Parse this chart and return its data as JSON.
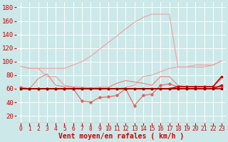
{
  "x": [
    0,
    1,
    2,
    3,
    4,
    5,
    6,
    7,
    8,
    9,
    10,
    11,
    12,
    13,
    14,
    15,
    16,
    17,
    18,
    19,
    20,
    21,
    22,
    23
  ],
  "series": [
    {
      "name": "line1_lightest",
      "color": "#f0a0a0",
      "linewidth": 0.8,
      "marker": null,
      "y": [
        93,
        90,
        90,
        90,
        90,
        90,
        95,
        100,
        108,
        118,
        128,
        138,
        148,
        158,
        165,
        170,
        170,
        170,
        92,
        92,
        95,
        95,
        95,
        101
      ]
    },
    {
      "name": "line2_light",
      "color": "#f0a0a0",
      "linewidth": 0.8,
      "marker": null,
      "y": [
        93,
        90,
        90,
        78,
        78,
        65,
        63,
        62,
        61,
        60,
        60,
        60,
        62,
        65,
        78,
        80,
        85,
        90,
        92,
        92,
        92,
        92,
        95,
        101
      ]
    },
    {
      "name": "line3_medium_light",
      "color": "#e88080",
      "linewidth": 0.8,
      "marker": null,
      "y": [
        62,
        60,
        75,
        82,
        65,
        63,
        62,
        62,
        61,
        62,
        62,
        68,
        72,
        70,
        68,
        65,
        78,
        78,
        65,
        63,
        62,
        63,
        63,
        75
      ]
    },
    {
      "name": "line4_medium",
      "color": "#e06060",
      "linewidth": 0.8,
      "marker": "D",
      "markersize": 1.8,
      "y": [
        62,
        60,
        60,
        60,
        60,
        60,
        60,
        42,
        40,
        47,
        48,
        50,
        60,
        35,
        50,
        52,
        65,
        67,
        63,
        63,
        63,
        63,
        63,
        63
      ]
    },
    {
      "name": "line5_dark_flat",
      "color": "#cc0000",
      "linewidth": 1.2,
      "marker": "s",
      "markersize": 2.0,
      "y": [
        60,
        60,
        60,
        60,
        60,
        60,
        60,
        60,
        60,
        60,
        60,
        60,
        60,
        60,
        60,
        60,
        60,
        60,
        63,
        63,
        63,
        63,
        63,
        78
      ]
    },
    {
      "name": "line6_dark_flat2",
      "color": "#cc0000",
      "linewidth": 1.2,
      "marker": "s",
      "markersize": 2.0,
      "y": [
        60,
        60,
        60,
        60,
        60,
        60,
        60,
        60,
        60,
        60,
        60,
        60,
        60,
        60,
        60,
        60,
        60,
        60,
        60,
        60,
        60,
        60,
        60,
        65
      ]
    },
    {
      "name": "line7_darkest",
      "color": "#990000",
      "linewidth": 1.2,
      "marker": "s",
      "markersize": 2.0,
      "y": [
        60,
        60,
        60,
        60,
        60,
        60,
        60,
        60,
        60,
        60,
        60,
        60,
        60,
        60,
        60,
        60,
        60,
        60,
        60,
        60,
        60,
        60,
        60,
        60
      ]
    }
  ],
  "xlabel": "Vent moyen/en rafales ( km/h )",
  "yticks": [
    20,
    40,
    60,
    80,
    100,
    120,
    140,
    160,
    180
  ],
  "xticks": [
    0,
    1,
    2,
    3,
    4,
    5,
    6,
    7,
    8,
    9,
    10,
    11,
    12,
    13,
    14,
    15,
    16,
    17,
    18,
    19,
    20,
    21,
    22,
    23
  ],
  "xlim": [
    -0.5,
    23.5
  ],
  "ylim": [
    10,
    188
  ],
  "bg_color": "#cce8e8",
  "grid_color": "#b0d8d8",
  "xlabel_fontsize": 7.0,
  "ytick_fontsize": 6.5,
  "xtick_fontsize": 5.8
}
